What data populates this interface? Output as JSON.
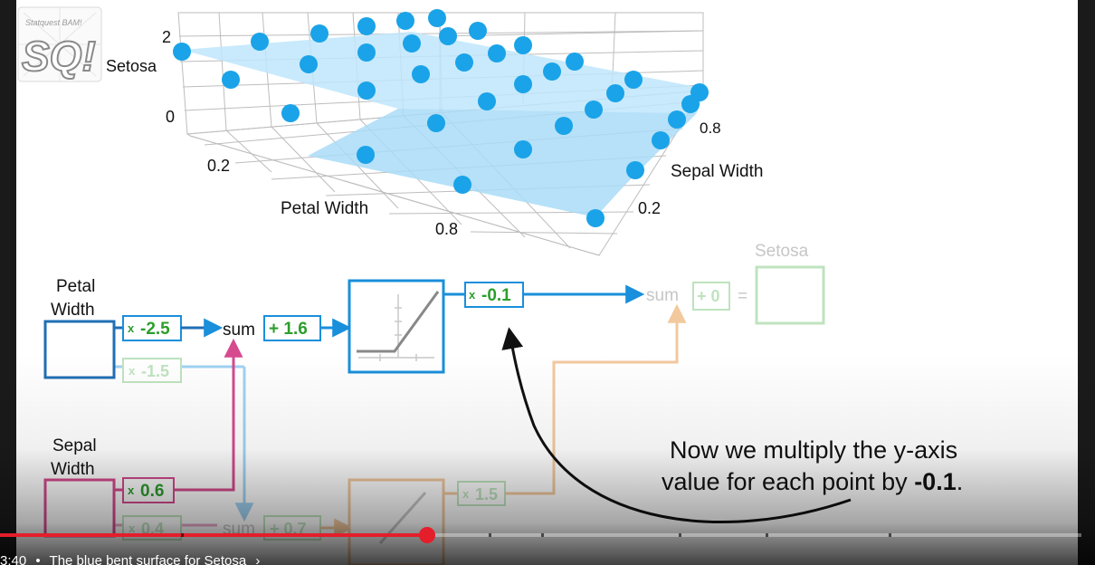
{
  "plot": {
    "z_axis_label": "Setosa",
    "z_ticks": [
      "2",
      "0"
    ],
    "petal_axis_label": "Petal Width",
    "petal_ticks": [
      "0.2",
      "0.8"
    ],
    "sepal_axis_label": "Sepal Width",
    "sepal_ticks": [
      "0.8",
      "0.2"
    ],
    "point_color": "#1aa3e8",
    "surface_color": "#bfe6fb"
  },
  "network": {
    "input1_label_line1": "Petal",
    "input1_label_line2": "Width",
    "input2_label_line1": "Sepal",
    "input2_label_line2": "Width",
    "w_petal_top": "-2.5",
    "w_petal_bottom": "-1.5",
    "w_sepal_top": "0.6",
    "w_sepal_bottom": "0.4",
    "times_sign": "x",
    "sum_label": "sum",
    "bias_top": "+ 1.6",
    "bias_bottom": "+ 0.7",
    "w_out_top": "-0.1",
    "w_out_bottom": "1.5",
    "final_sum_label": "sum",
    "final_bias": "+ 0",
    "equals": "=",
    "output_label": "Setosa",
    "colors": {
      "blue": "#1f6fb5",
      "pink": "#d64a8e",
      "green": "#2c9e2c",
      "arrow_blue": "#1a8fdb",
      "faded_orange": "#f2c89d",
      "faded_green": "#bfe3bf"
    }
  },
  "annotation": {
    "line1": "Now we multiply the y-axis",
    "line2_prefix": "value for each point by ",
    "line2_value": "-0.1",
    "line2_suffix": "."
  },
  "logo": {
    "text": "SQ!",
    "small_text": "Statquest BAM!"
  },
  "player": {
    "progress_percent": 39.5,
    "time": "3:40",
    "separator": "•",
    "chapter_title": "The blue bent surface for Setosa",
    "chapter_chevron": "chevron-right-icon"
  }
}
